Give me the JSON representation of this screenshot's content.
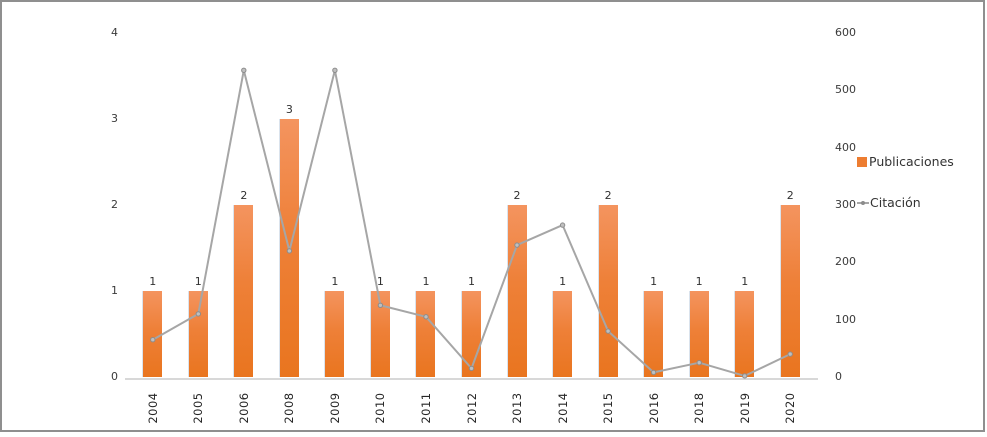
{
  "chart_data": {
    "type": "bar",
    "subtype": "combo-bar-line-dual-axis",
    "title": "",
    "categories": [
      "2004",
      "2005",
      "2006",
      "2008",
      "2009",
      "2010",
      "2011",
      "2012",
      "2013",
      "2014",
      "2015",
      "2016",
      "2018",
      "2019",
      "2020"
    ],
    "series": [
      {
        "name": "Publicaciones",
        "type": "bar",
        "axis": "left",
        "color": "#ED7D31",
        "values": [
          1,
          1,
          2,
          3,
          1,
          1,
          1,
          1,
          2,
          1,
          2,
          1,
          1,
          1,
          2
        ],
        "data_labels": [
          "1",
          "1",
          "2",
          "3",
          "1",
          "1",
          "1",
          "1",
          "2",
          "1",
          "2",
          "1",
          "1",
          "1",
          "2"
        ]
      },
      {
        "name": "Citación",
        "type": "line",
        "axis": "right",
        "color": "#A6A6A6",
        "values": [
          65,
          110,
          535,
          220,
          535,
          125,
          105,
          15,
          230,
          265,
          80,
          8,
          25,
          2,
          40
        ]
      }
    ],
    "left_axis": {
      "min": 0,
      "max": 4,
      "tick_labels": [
        "0",
        "1",
        "2",
        "3",
        "4"
      ]
    },
    "right_axis": {
      "min": 0,
      "max": 600,
      "tick_labels": [
        "0",
        "100",
        "200",
        "300",
        "400",
        "500",
        "600"
      ]
    },
    "grid": false,
    "legend_position": "right",
    "xlabel": "",
    "ylabel": ""
  }
}
